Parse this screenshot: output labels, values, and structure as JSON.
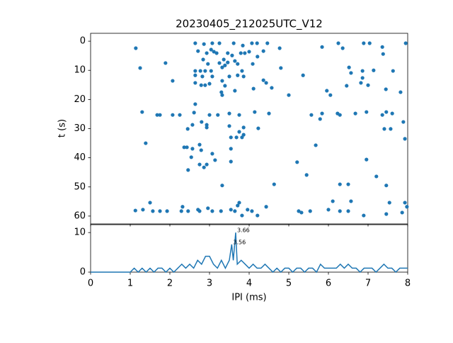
{
  "chart_data": [
    {
      "type": "scatter",
      "title": "20230405_212025UTC_V12",
      "y_label": "t (s)",
      "color": "#1f77b4",
      "xlim": [
        0,
        8
      ],
      "ylim": [
        62.7,
        -2.7
      ],
      "yticks": [
        0,
        10,
        20,
        30,
        40,
        50,
        60
      ],
      "x": [
        1.14,
        2.64,
        2.86,
        3.07,
        3.25,
        3.61,
        3.84,
        4.07,
        4.2,
        4.46,
        4.77,
        5.84,
        6.25,
        6.89,
        7.04,
        7.36,
        7.95,
        2.71,
        2.93,
        3.04,
        3.11,
        3.18,
        3.46,
        3.57,
        3.79,
        3.89,
        4.0,
        2.84,
        3.36,
        3.64,
        3.71,
        3.46,
        4.21,
        4.36,
        6.36,
        7.38,
        1.25,
        1.89,
        2.89,
        2.64,
        2.77,
        3.04,
        3.32,
        2.96,
        3.25,
        3.39,
        3.82,
        4.09,
        4.8,
        5.36,
        6.52,
        6.57,
        6.86,
        6.86,
        7.14,
        7.63,
        4.36,
        2.64,
        2.82,
        3.07,
        2.07,
        2.64,
        2.79,
        2.89,
        3.0,
        3.32,
        3.39,
        3.5,
        3.71,
        3.86,
        4.43,
        4.11,
        4.57,
        5.96,
        6.05,
        6.46,
        6.82,
        7.0,
        7.45,
        7.82,
        3.3,
        3.32,
        3.64,
        5.0,
        2.64,
        1.3,
        1.68,
        1.75,
        2.07,
        2.25,
        2.61,
        3.0,
        3.21,
        3.5,
        3.75,
        4.14,
        4.5,
        5.57,
        5.84,
        5.79,
        6.23,
        6.29,
        6.68,
        6.96,
        7.36,
        7.46,
        7.61,
        7.89,
        2.45,
        2.57,
        2.8,
        2.93,
        2.93,
        3.5,
        3.86,
        4.23,
        7.41,
        7.57,
        1.39,
        2.36,
        2.43,
        2.57,
        2.75,
        2.79,
        3.07,
        3.54,
        3.68,
        3.75,
        3.86,
        3.82,
        5.68,
        7.93,
        3.54,
        2.54,
        2.75,
        2.86,
        2.93,
        3.14,
        3.54,
        2.46,
        5.21,
        5.45,
        6.96,
        7.21,
        3.32,
        4.63,
        6.29,
        6.5,
        7.46,
        1.13,
        1.32,
        1.5,
        1.57,
        1.75,
        1.93,
        2.32,
        2.29,
        2.46,
        2.71,
        2.75,
        2.96,
        3.07,
        3.29,
        3.54,
        3.64,
        3.75,
        3.82,
        3.96,
        4.07,
        4.21,
        4.43,
        5.25,
        5.32,
        5.54,
        6.0,
        6.11,
        6.29,
        6.5,
        6.57,
        6.89,
        7.46,
        7.54,
        7.86,
        7.93,
        7.98,
        3.71
      ],
      "values": [
        2.4,
        0.7,
        1,
        0.7,
        0.7,
        0.7,
        1.5,
        0.7,
        0.7,
        0.7,
        2.4,
        2,
        0.7,
        0.7,
        0.7,
        2,
        0.7,
        3.4,
        4.1,
        2.9,
        3.6,
        4.1,
        4.1,
        4.9,
        4.1,
        4.1,
        3.6,
        6.3,
        6.3,
        6.8,
        7.8,
        7.3,
        5.3,
        3.4,
        2.4,
        4.4,
        9.2,
        7.5,
        10.2,
        10.2,
        10.2,
        10.2,
        9,
        7.8,
        7.5,
        8.3,
        10.2,
        7.8,
        9.2,
        11.7,
        9,
        10.9,
        10.2,
        12.6,
        10,
        10.2,
        13.4,
        11.7,
        12.1,
        12.1,
        13.6,
        14.3,
        15.1,
        15.1,
        14.6,
        13.6,
        15.3,
        12.1,
        11.7,
        12.1,
        14.3,
        16.3,
        16,
        17,
        18.5,
        15.3,
        14.3,
        15.1,
        16.5,
        17.5,
        17.5,
        18.5,
        17,
        18.5,
        21.6,
        24.3,
        25.3,
        25.3,
        25.3,
        25.3,
        24.5,
        25.3,
        25.3,
        24.8,
        25.3,
        24.3,
        24.8,
        25.3,
        24.8,
        26.7,
        24.8,
        25.3,
        24.8,
        24.3,
        25.3,
        24.3,
        24.8,
        27.7,
        30.1,
        28.7,
        27.7,
        28.7,
        29.6,
        29.1,
        29.6,
        29.9,
        30.1,
        30.1,
        35,
        36.4,
        36.4,
        36.9,
        35.5,
        37.4,
        38.6,
        33,
        33,
        31.1,
        32.1,
        33,
        35.7,
        33.5,
        36.9,
        39.8,
        42.3,
        43.3,
        42.3,
        40.8,
        41.3,
        44.2,
        41.5,
        45.9,
        40.6,
        46.4,
        49.5,
        49.1,
        49.1,
        49.1,
        49.5,
        58.1,
        57.8,
        55.4,
        58.3,
        58.3,
        58.3,
        56.8,
        58.3,
        58.3,
        57.8,
        58.3,
        57.3,
        58.3,
        58.3,
        57.8,
        58.3,
        55.4,
        59.8,
        57.8,
        58.3,
        59.8,
        56.8,
        58.3,
        58.8,
        58.3,
        57.8,
        54.9,
        58.3,
        58.3,
        54.9,
        59.8,
        59.3,
        55.4,
        58.8,
        55.4,
        56.8,
        56.4
      ]
    },
    {
      "type": "line",
      "x_label": "IPI (ms)",
      "color": "#1f77b4",
      "xlim": [
        0,
        8
      ],
      "xticks": [
        0,
        1,
        2,
        3,
        4,
        5,
        6,
        7,
        8
      ],
      "ylim": [
        0,
        12
      ],
      "yticks": [
        0,
        10
      ],
      "x": [
        0,
        0.1,
        0.2,
        0.3,
        0.4,
        0.5,
        0.6,
        0.7,
        0.8,
        0.9,
        1.0,
        1.1,
        1.2,
        1.3,
        1.4,
        1.5,
        1.6,
        1.7,
        1.8,
        1.9,
        2.0,
        2.1,
        2.2,
        2.3,
        2.4,
        2.5,
        2.6,
        2.7,
        2.8,
        2.9,
        3.0,
        3.1,
        3.2,
        3.3,
        3.4,
        3.5,
        3.56,
        3.6,
        3.66,
        3.7,
        3.8,
        3.9,
        4.0,
        4.1,
        4.2,
        4.3,
        4.4,
        4.5,
        4.6,
        4.7,
        4.8,
        4.9,
        5.0,
        5.1,
        5.2,
        5.3,
        5.4,
        5.5,
        5.6,
        5.7,
        5.8,
        5.9,
        6.0,
        6.1,
        6.2,
        6.3,
        6.4,
        6.5,
        6.6,
        6.7,
        6.8,
        6.9,
        7.0,
        7.1,
        7.2,
        7.3,
        7.4,
        7.5,
        7.6,
        7.7,
        7.8,
        7.9,
        8.0
      ],
      "values": [
        0,
        0,
        0,
        0,
        0,
        0,
        0,
        0,
        0,
        0,
        0,
        1,
        0,
        1,
        0,
        1,
        0,
        1,
        1,
        0,
        1,
        0,
        1,
        2,
        1,
        2,
        1,
        3,
        2,
        4,
        4,
        2,
        1,
        3,
        1,
        3,
        7,
        3,
        10,
        2,
        3,
        2,
        1,
        2,
        1,
        1,
        2,
        1,
        0,
        1,
        0,
        1,
        1,
        0,
        1,
        1,
        0,
        1,
        1,
        0,
        2,
        1,
        1,
        1,
        1,
        2,
        1,
        2,
        1,
        1,
        0,
        1,
        1,
        1,
        0,
        1,
        2,
        1,
        1,
        0,
        1,
        1,
        1
      ],
      "annotations": [
        {
          "x": 3.66,
          "y": 10,
          "label": "3.66"
        },
        {
          "x": 3.56,
          "y": 7,
          "label": "3.56"
        }
      ]
    }
  ]
}
